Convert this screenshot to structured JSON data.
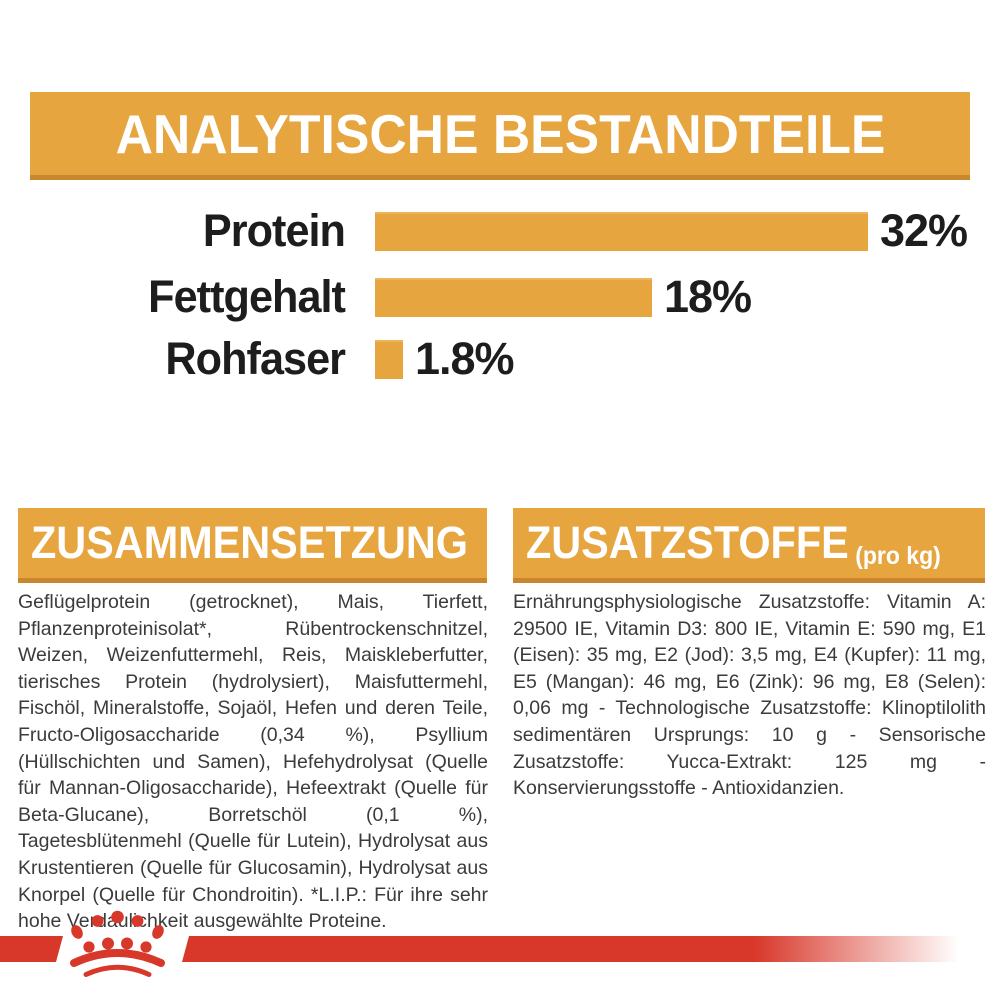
{
  "colors": {
    "gold": "#E6A53F",
    "gold_border": "#C8862E",
    "red": "#D8382A",
    "banner_text": "#FFFFFF",
    "body_text": "#3B3B3B"
  },
  "analytical": {
    "title": "ANALYTISCHE BESTANDTEILE"
  },
  "chart_data": {
    "type": "bar",
    "orientation": "horizontal",
    "title": "ANALYTISCHE BESTANDTEILE",
    "categories": [
      "Protein",
      "Fettgehalt",
      "Rohfaser"
    ],
    "values": [
      32,
      18,
      1.8
    ],
    "value_labels": [
      "32%",
      "18%",
      "1.8%"
    ],
    "unit": "%",
    "xlim": [
      0,
      32
    ],
    "bar_color": "#E6A53F",
    "grid": false,
    "legend": false
  },
  "composition": {
    "title": "ZUSAMMENSETZUNG",
    "body": "Geflügelprotein (getrocknet), Mais, Tierfett, Pflanzenproteinisolat*, Rübentrockenschnitzel, Weizen, Weizenfuttermehl, Reis, Maiskleberfutter, tierisches Protein (hydrolysiert), Maisfuttermehl, Fischöl, Mineralstoffe, Sojaöl, Hefen und deren Teile, Fructo-Oligosaccharide (0,34 %), Psyllium (Hüllschichten und Samen), Hefehydrolysat (Quelle für Mannan-Oligosaccharide), Hefeextrakt (Quelle für Beta-Glucane), Borretschöl (0,1 %), Tagetesblütenmehl (Quelle für Lutein), Hydrolysat aus Krustentieren (Quelle für Glucosamin), Hydrolysat aus Knorpel (Quelle für Chondroitin). *L.I.P.: Für ihre sehr hohe Verdaulichkeit ausgewählte Proteine."
  },
  "additives": {
    "title": "ZUSATZSTOFFE",
    "title_suffix": "(pro kg)",
    "body": "Ernährungsphysiologische Zusatzstoffe: Vitamin A: 29500 IE, Vitamin D3: 800 IE, Vitamin E: 590 mg, E1 (Eisen): 35 mg, E2 (Jod): 3,5 mg, E4 (Kupfer): 11 mg, E5 (Mangan): 46 mg, E6 (Zink): 96 mg, E8 (Selen): 0,06 mg - Technologische Zusatzstoffe: Klinoptilolith sedimentären Ursprungs: 10 g - Sensorische Zusatzstoffe: Yucca-Extrakt: 125 mg - Konservierungsstoffe - Antioxidanzien.",
    "footer_logo": "royal-canin-crown-icon"
  }
}
